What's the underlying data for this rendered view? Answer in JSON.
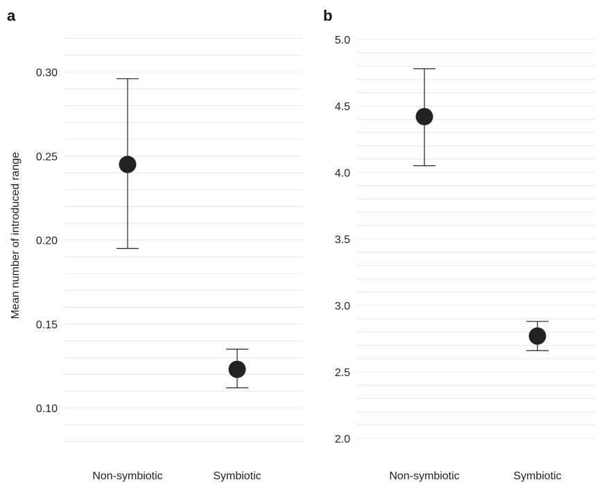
{
  "chart_data": [
    {
      "panel": "a",
      "type": "scatter",
      "ylabel": "Mean number of introduced range",
      "xlabel": "",
      "categories": [
        "Non-symbiotic",
        "Symbiotic"
      ],
      "points": [
        {
          "category": "Non-symbiotic",
          "y": 0.245,
          "lower": 0.195,
          "upper": 0.296
        },
        {
          "category": "Symbiotic",
          "y": 0.123,
          "lower": 0.112,
          "upper": 0.135
        }
      ],
      "yticks": [
        "0.10",
        "0.15",
        "0.20",
        "0.25",
        "0.30"
      ],
      "ylim": [
        0.08,
        0.32
      ],
      "grid": true,
      "color": "#222222"
    },
    {
      "panel": "b",
      "type": "scatter",
      "ylabel": "",
      "xlabel": "",
      "categories": [
        "Non-symbiotic",
        "Symbiotic"
      ],
      "points": [
        {
          "category": "Non-symbiotic",
          "y": 4.42,
          "lower": 4.05,
          "upper": 4.78
        },
        {
          "category": "Symbiotic",
          "y": 2.77,
          "lower": 2.66,
          "upper": 2.88
        }
      ],
      "yticks": [
        "2.0",
        "2.5",
        "3.0",
        "3.5",
        "4.0",
        "4.5",
        "5.0"
      ],
      "ylim": [
        2.0,
        5.0
      ],
      "grid": true,
      "color": "#222222"
    }
  ]
}
